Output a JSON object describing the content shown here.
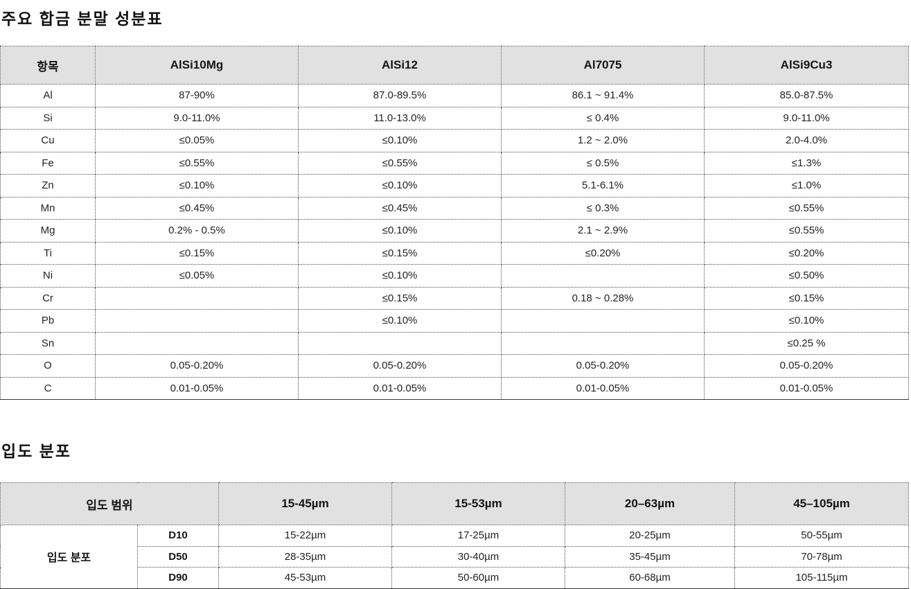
{
  "composition": {
    "title": "주요 합금 분말 성분표",
    "columns": [
      "항목",
      "AlSi10Mg",
      "AlSi12",
      "Al7075",
      "AlSi9Cu3"
    ],
    "rows": [
      {
        "element": "Al",
        "values": [
          "87-90%",
          "87.0-89.5%",
          "86.1 ~ 91.4%",
          "85.0-87.5%"
        ]
      },
      {
        "element": "Si",
        "values": [
          "9.0-11.0%",
          "11.0-13.0%",
          "≤ 0.4%",
          "9.0-11.0%"
        ]
      },
      {
        "element": "Cu",
        "values": [
          "≤0.05%",
          "≤0.10%",
          "1.2 ~ 2.0%",
          "2.0-4.0%"
        ]
      },
      {
        "element": "Fe",
        "values": [
          "≤0.55%",
          "≤0.55%",
          "≤ 0.5%",
          "≤1.3%"
        ]
      },
      {
        "element": "Zn",
        "values": [
          "≤0.10%",
          "≤0.10%",
          "5.1-6.1%",
          "≤1.0%"
        ]
      },
      {
        "element": "Mn",
        "values": [
          "≤0.45%",
          "≤0.45%",
          "≤ 0.3%",
          "≤0.55%"
        ]
      },
      {
        "element": "Mg",
        "values": [
          "0.2% - 0.5%",
          "≤0.10%",
          "2.1 ~ 2.9%",
          "≤0.55%"
        ]
      },
      {
        "element": "Ti",
        "values": [
          "≤0.15%",
          "≤0.15%",
          "≤0.20%",
          "≤0.20%"
        ]
      },
      {
        "element": "Ni",
        "values": [
          "≤0.05%",
          "≤0.10%",
          "",
          "≤0.50%"
        ]
      },
      {
        "element": "Cr",
        "values": [
          "",
          "≤0.15%",
          "0.18 ~ 0.28%",
          "≤0.15%"
        ]
      },
      {
        "element": "Pb",
        "values": [
          "",
          "≤0.10%",
          "",
          "≤0.10%"
        ]
      },
      {
        "element": "Sn",
        "values": [
          "",
          "",
          "",
          "≤0.25 %"
        ]
      },
      {
        "element": "O",
        "values": [
          "0.05-0.20%",
          "0.05-0.20%",
          "0.05-0.20%",
          "0.05-0.20%"
        ]
      },
      {
        "element": "C",
        "values": [
          "0.01-0.05%",
          "0.01-0.05%",
          "0.01-0.05%",
          "0.01-0.05%"
        ]
      }
    ]
  },
  "particle": {
    "title": "입도 분포",
    "header_label": "입도 범위",
    "columns": [
      "15-45µm",
      "15-53µm",
      "20–63µm",
      "45–105µm"
    ],
    "row_group_label": "입도 분포",
    "rows": [
      {
        "label": "D10",
        "values": [
          "15-22µm",
          "17-25µm",
          "20-25µm",
          "50-55µm"
        ]
      },
      {
        "label": "D50",
        "values": [
          "28-35µm",
          "30-40µm",
          "35-45µm",
          "70-78µm"
        ]
      },
      {
        "label": "D90",
        "values": [
          "45-53µm",
          "50-60µm",
          "60-68µm",
          "105-115µm"
        ]
      }
    ]
  },
  "colors": {
    "header_bg": "#e1e1e1",
    "border": "#4a4a4a",
    "text": "#1f1f1f"
  }
}
